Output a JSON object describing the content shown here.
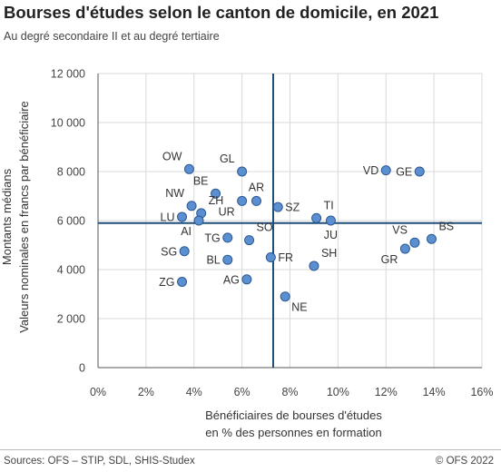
{
  "header": {
    "title": "Bourses d'études selon le canton de domicile, en 2021",
    "subtitle": "Au degré secondaire II et au degré tertiaire"
  },
  "footer": {
    "source": "Sources: OFS – STIP, SDL, SHIS-Studex",
    "copyright": "© OFS 2022"
  },
  "colors": {
    "point_fill": "#5b8fd0",
    "point_stroke": "#2b5a95",
    "reference_line": "#1f4e79",
    "grid": "#d9d9d9",
    "axis": "#555555"
  },
  "chart_data": {
    "type": "scatter",
    "xlabel_lines": [
      "Bénéficiaires de bourses d'études",
      "en % des personnes en formation"
    ],
    "ylabel_lines": [
      "Montants médians",
      "Valeurs nominales en francs par bénéficiaire"
    ],
    "xlim": [
      0,
      16
    ],
    "ylim": [
      0,
      12000
    ],
    "x_ticks": [
      0,
      2,
      4,
      6,
      8,
      10,
      12,
      14,
      16
    ],
    "x_tick_labels": [
      "0%",
      "2%",
      "4%",
      "6%",
      "8%",
      "10%",
      "12%",
      "14%",
      "16%"
    ],
    "y_ticks": [
      0,
      2000,
      4000,
      6000,
      8000,
      10000,
      12000
    ],
    "y_tick_labels": [
      "0",
      "2 000",
      "4 000",
      "6 000",
      "8 000",
      "10 000",
      "12 000"
    ],
    "grid": true,
    "reference_lines": {
      "x": 7.3,
      "y": 5900
    },
    "points": [
      {
        "label": "OW",
        "x": 3.8,
        "y": 8100,
        "pos": "tl"
      },
      {
        "label": "GL",
        "x": 6.0,
        "y": 8000,
        "pos": "tl"
      },
      {
        "label": "VD",
        "x": 12.0,
        "y": 8050,
        "pos": "l"
      },
      {
        "label": "GE",
        "x": 13.4,
        "y": 8000,
        "pos": "l"
      },
      {
        "label": "BE",
        "x": 4.9,
        "y": 7100,
        "pos": "tl"
      },
      {
        "label": "AR",
        "x": 6.6,
        "y": 6800,
        "pos": "t"
      },
      {
        "label": "NW",
        "x": 3.9,
        "y": 6600,
        "pos": "tl"
      },
      {
        "label": "ZH",
        "x": 4.3,
        "y": 6300,
        "pos": "tr"
      },
      {
        "label": "SZ",
        "x": 7.5,
        "y": 6550,
        "pos": "r"
      },
      {
        "label": "UR",
        "x": 6.0,
        "y": 6800,
        "pos": "bl"
      },
      {
        "label": "LU",
        "x": 3.5,
        "y": 6150,
        "pos": "l"
      },
      {
        "label": "TI",
        "x": 9.1,
        "y": 6100,
        "pos": "tr"
      },
      {
        "label": "JU",
        "x": 9.7,
        "y": 6000,
        "pos": "b"
      },
      {
        "label": "AI",
        "x": 4.2,
        "y": 6000,
        "pos": "bl"
      },
      {
        "label": "SO",
        "x": 6.3,
        "y": 5200,
        "pos": "tr"
      },
      {
        "label": "TG",
        "x": 5.4,
        "y": 5300,
        "pos": "l"
      },
      {
        "label": "VS",
        "x": 13.2,
        "y": 5100,
        "pos": "tl"
      },
      {
        "label": "BS",
        "x": 13.9,
        "y": 5250,
        "pos": "tr"
      },
      {
        "label": "GR",
        "x": 12.8,
        "y": 4850,
        "pos": "bl"
      },
      {
        "label": "SG",
        "x": 3.6,
        "y": 4750,
        "pos": "l"
      },
      {
        "label": "BL",
        "x": 5.4,
        "y": 4400,
        "pos": "l"
      },
      {
        "label": "FR",
        "x": 7.2,
        "y": 4500,
        "pos": "r"
      },
      {
        "label": "SH",
        "x": 9.0,
        "y": 4150,
        "pos": "tr"
      },
      {
        "label": "AG",
        "x": 6.2,
        "y": 3600,
        "pos": "l"
      },
      {
        "label": "ZG",
        "x": 3.5,
        "y": 3500,
        "pos": "l"
      },
      {
        "label": "NE",
        "x": 7.8,
        "y": 2900,
        "pos": "br"
      }
    ]
  }
}
